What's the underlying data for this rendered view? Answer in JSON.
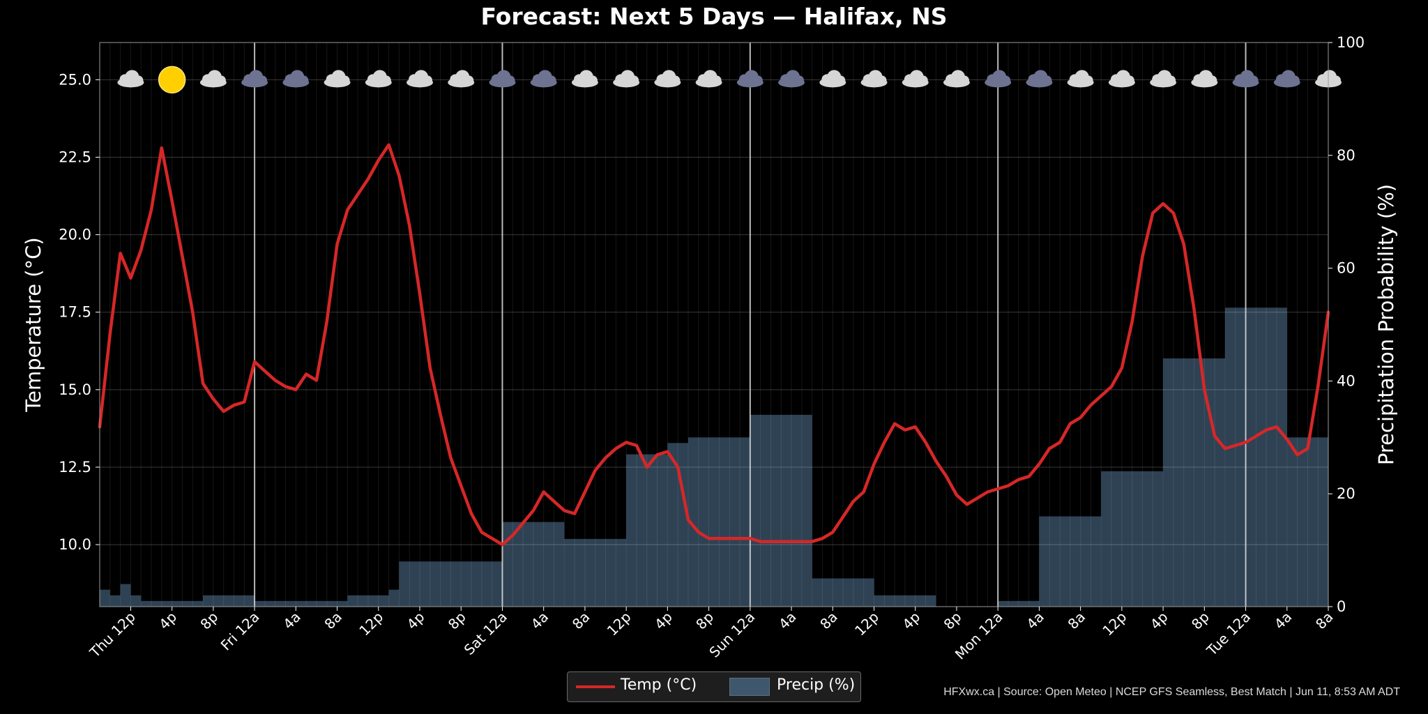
{
  "chart_data": {
    "type": "line+bar",
    "title": "Forecast: Next 5 Days — Halifax, NS",
    "y_left_label": "Temperature (°C)",
    "y_right_label": "Precipitation Probability (%)",
    "y_left_lim": [
      8.0,
      26.2
    ],
    "y_left_ticks": [
      "10.0",
      "12.5",
      "15.0",
      "17.5",
      "20.0",
      "22.5",
      "25.0"
    ],
    "y_right_lim": [
      0,
      100
    ],
    "y_right_ticks": [
      "0",
      "20",
      "40",
      "60",
      "80",
      "100"
    ],
    "x_hours_range": [
      9,
      128
    ],
    "x_ticks": [
      {
        "h": 12,
        "label": "Thu 12p"
      },
      {
        "h": 16,
        "label": "4p"
      },
      {
        "h": 20,
        "label": "8p"
      },
      {
        "h": 24,
        "label": "Fri 12a"
      },
      {
        "h": 28,
        "label": "4a"
      },
      {
        "h": 32,
        "label": "8a"
      },
      {
        "h": 36,
        "label": "12p"
      },
      {
        "h": 40,
        "label": "4p"
      },
      {
        "h": 44,
        "label": "8p"
      },
      {
        "h": 48,
        "label": "Sat 12a"
      },
      {
        "h": 52,
        "label": "4a"
      },
      {
        "h": 56,
        "label": "8a"
      },
      {
        "h": 60,
        "label": "12p"
      },
      {
        "h": 64,
        "label": "4p"
      },
      {
        "h": 68,
        "label": "8p"
      },
      {
        "h": 72,
        "label": "Sun 12a"
      },
      {
        "h": 76,
        "label": "4a"
      },
      {
        "h": 80,
        "label": "8a"
      },
      {
        "h": 84,
        "label": "12p"
      },
      {
        "h": 88,
        "label": "4p"
      },
      {
        "h": 92,
        "label": "8p"
      },
      {
        "h": 96,
        "label": "Mon 12a"
      },
      {
        "h": 100,
        "label": "4a"
      },
      {
        "h": 104,
        "label": "8a"
      },
      {
        "h": 108,
        "label": "12p"
      },
      {
        "h": 112,
        "label": "4p"
      },
      {
        "h": 116,
        "label": "8p"
      },
      {
        "h": 120,
        "label": "Tue 12a"
      },
      {
        "h": 124,
        "label": "4a"
      },
      {
        "h": 128,
        "label": "8a"
      }
    ],
    "day_boundaries": [
      24,
      48,
      72,
      96,
      120
    ],
    "temp_series": {
      "name": "Temp (°C)",
      "color": "#d62728",
      "points": [
        [
          9,
          13.8
        ],
        [
          10,
          16.8
        ],
        [
          11,
          19.4
        ],
        [
          12,
          18.6
        ],
        [
          13,
          19.5
        ],
        [
          14,
          20.8
        ],
        [
          15,
          22.8
        ],
        [
          16,
          21.1
        ],
        [
          17,
          19.3
        ],
        [
          18,
          17.5
        ],
        [
          19,
          15.2
        ],
        [
          20,
          14.7
        ],
        [
          21,
          14.3
        ],
        [
          22,
          14.5
        ],
        [
          23,
          14.6
        ],
        [
          24,
          15.9
        ],
        [
          25,
          15.6
        ],
        [
          26,
          15.3
        ],
        [
          27,
          15.1
        ],
        [
          28,
          15.0
        ],
        [
          29,
          15.5
        ],
        [
          30,
          15.3
        ],
        [
          31,
          17.2
        ],
        [
          32,
          19.7
        ],
        [
          33,
          20.8
        ],
        [
          34,
          21.3
        ],
        [
          35,
          21.8
        ],
        [
          36,
          22.4
        ],
        [
          37,
          22.9
        ],
        [
          38,
          21.9
        ],
        [
          39,
          20.3
        ],
        [
          40,
          18.1
        ],
        [
          41,
          15.7
        ],
        [
          42,
          14.2
        ],
        [
          43,
          12.8
        ],
        [
          44,
          11.9
        ],
        [
          45,
          11.0
        ],
        [
          46,
          10.4
        ],
        [
          47,
          10.2
        ],
        [
          48,
          10.0
        ],
        [
          49,
          10.3
        ],
        [
          50,
          10.7
        ],
        [
          51,
          11.1
        ],
        [
          52,
          11.7
        ],
        [
          53,
          11.4
        ],
        [
          54,
          11.1
        ],
        [
          55,
          11.0
        ],
        [
          56,
          11.7
        ],
        [
          57,
          12.4
        ],
        [
          58,
          12.8
        ],
        [
          59,
          13.1
        ],
        [
          60,
          13.3
        ],
        [
          61,
          13.2
        ],
        [
          62,
          12.5
        ],
        [
          63,
          12.9
        ],
        [
          64,
          13.0
        ],
        [
          65,
          12.5
        ],
        [
          66,
          10.8
        ],
        [
          67,
          10.4
        ],
        [
          68,
          10.2
        ],
        [
          69,
          10.2
        ],
        [
          70,
          10.2
        ],
        [
          71,
          10.2
        ],
        [
          72,
          10.2
        ],
        [
          73,
          10.1
        ],
        [
          74,
          10.1
        ],
        [
          75,
          10.1
        ],
        [
          76,
          10.1
        ],
        [
          77,
          10.1
        ],
        [
          78,
          10.1
        ],
        [
          79,
          10.2
        ],
        [
          80,
          10.4
        ],
        [
          81,
          10.9
        ],
        [
          82,
          11.4
        ],
        [
          83,
          11.7
        ],
        [
          84,
          12.6
        ],
        [
          85,
          13.3
        ],
        [
          86,
          13.9
        ],
        [
          87,
          13.7
        ],
        [
          88,
          13.8
        ],
        [
          89,
          13.3
        ],
        [
          90,
          12.7
        ],
        [
          91,
          12.2
        ],
        [
          92,
          11.6
        ],
        [
          93,
          11.3
        ],
        [
          94,
          11.5
        ],
        [
          95,
          11.7
        ],
        [
          96,
          11.8
        ],
        [
          97,
          11.9
        ],
        [
          98,
          12.1
        ],
        [
          99,
          12.2
        ],
        [
          100,
          12.6
        ],
        [
          101,
          13.1
        ],
        [
          102,
          13.3
        ],
        [
          103,
          13.9
        ],
        [
          104,
          14.1
        ],
        [
          105,
          14.5
        ],
        [
          106,
          14.8
        ],
        [
          107,
          15.1
        ],
        [
          108,
          15.7
        ],
        [
          109,
          17.2
        ],
        [
          110,
          19.3
        ],
        [
          111,
          20.7
        ],
        [
          112,
          21.0
        ],
        [
          113,
          20.7
        ],
        [
          114,
          19.7
        ],
        [
          115,
          17.6
        ],
        [
          116,
          15.0
        ],
        [
          117,
          13.5
        ],
        [
          118,
          13.1
        ],
        [
          119,
          13.2
        ],
        [
          120,
          13.3
        ],
        [
          121,
          13.5
        ],
        [
          122,
          13.7
        ],
        [
          123,
          13.8
        ],
        [
          124,
          13.4
        ],
        [
          125,
          12.9
        ],
        [
          126,
          13.1
        ],
        [
          127,
          15.1
        ],
        [
          128,
          17.5
        ]
      ]
    },
    "precip_series": {
      "name": "Precip (%)",
      "color": "#4b6a87",
      "bars": [
        [
          9,
          10,
          3
        ],
        [
          10,
          11,
          2
        ],
        [
          11,
          12,
          4
        ],
        [
          12,
          13,
          2
        ],
        [
          13,
          19,
          1
        ],
        [
          19,
          24,
          2
        ],
        [
          24,
          33,
          1
        ],
        [
          33,
          37,
          2
        ],
        [
          37,
          38,
          3
        ],
        [
          38,
          44,
          8
        ],
        [
          44,
          48,
          8
        ],
        [
          48,
          54,
          15
        ],
        [
          54,
          60,
          12
        ],
        [
          60,
          64,
          27
        ],
        [
          64,
          66,
          29
        ],
        [
          66,
          72,
          30
        ],
        [
          72,
          78,
          34
        ],
        [
          78,
          84,
          5
        ],
        [
          84,
          90,
          2
        ],
        [
          90,
          96,
          0
        ],
        [
          96,
          100,
          1
        ],
        [
          100,
          106,
          16
        ],
        [
          106,
          112,
          24
        ],
        [
          112,
          118,
          44
        ],
        [
          118,
          124,
          53
        ],
        [
          124,
          128,
          30
        ]
      ]
    },
    "weather_icons": [
      {
        "h": 12,
        "icon": "cloudy-icon"
      },
      {
        "h": 16,
        "icon": "sunny-icon"
      },
      {
        "h": 20,
        "icon": "cloudy-icon"
      },
      {
        "h": 24,
        "icon": "rain-cloud-icon"
      },
      {
        "h": 28,
        "icon": "rain-cloud-icon"
      },
      {
        "h": 32,
        "icon": "cloudy-icon"
      },
      {
        "h": 36,
        "icon": "cloudy-icon"
      },
      {
        "h": 40,
        "icon": "partly-cloudy-icon"
      },
      {
        "h": 44,
        "icon": "cloudy-icon"
      },
      {
        "h": 48,
        "icon": "rain-cloud-icon"
      },
      {
        "h": 52,
        "icon": "rain-cloud-icon"
      },
      {
        "h": 56,
        "icon": "cloudy-icon"
      },
      {
        "h": 60,
        "icon": "cloudy-icon"
      },
      {
        "h": 64,
        "icon": "cloudy-icon"
      },
      {
        "h": 68,
        "icon": "cloudy-icon"
      },
      {
        "h": 72,
        "icon": "rain-cloud-icon"
      },
      {
        "h": 76,
        "icon": "rain-cloud-icon"
      },
      {
        "h": 80,
        "icon": "cloudy-icon"
      },
      {
        "h": 84,
        "icon": "cloudy-icon"
      },
      {
        "h": 88,
        "icon": "cloudy-icon"
      },
      {
        "h": 92,
        "icon": "cloudy-icon"
      },
      {
        "h": 96,
        "icon": "rain-cloud-icon"
      },
      {
        "h": 100,
        "icon": "rain-cloud-icon"
      },
      {
        "h": 104,
        "icon": "cloudy-icon"
      },
      {
        "h": 108,
        "icon": "cloudy-icon"
      },
      {
        "h": 112,
        "icon": "cloudy-icon"
      },
      {
        "h": 116,
        "icon": "cloudy-icon"
      },
      {
        "h": 120,
        "icon": "rain-cloud-icon"
      },
      {
        "h": 124,
        "icon": "rain-cloud-icon"
      },
      {
        "h": 128,
        "icon": "cloudy-icon"
      }
    ],
    "grid": true,
    "legend_position": "bottom-center",
    "background_color": "#000000"
  },
  "legend": {
    "temp_label": "Temp (°C)",
    "precip_label": "Precip (%)"
  },
  "credit": "HFXwx.ca | Source: Open Meteo | NCEP GFS Seamless, Best Match | Jun 11, 8:53 AM ADT"
}
